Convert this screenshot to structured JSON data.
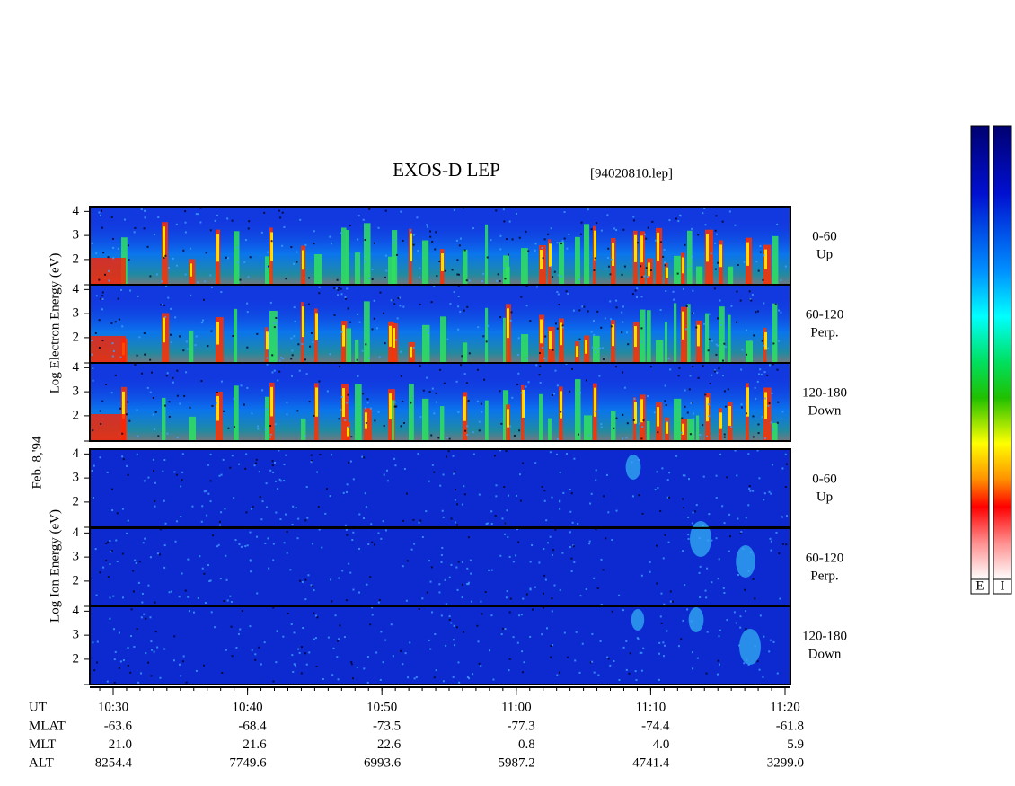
{
  "chart_data": {
    "type": "spectrogram",
    "title": "EXOS-D LEP",
    "subtitle": "[94020810.lep]",
    "date_label": "Feb. 8,'94",
    "ylim": [
      0.95,
      4.2
    ],
    "yticks": [
      2,
      3,
      4
    ],
    "groups": [
      {
        "ylabel": "Log Electron Energy (eV)",
        "panels": [
          {
            "label_top": "0-60",
            "label_bottom": "Up"
          },
          {
            "label_top": "60-120",
            "label_bottom": "Perp."
          },
          {
            "label_top": "120-180",
            "label_bottom": "Down"
          }
        ]
      },
      {
        "ylabel": "Log Ion Energy (eV)",
        "panels": [
          {
            "label_top": "0-60",
            "label_bottom": "Up"
          },
          {
            "label_top": "60-120",
            "label_bottom": "Perp."
          },
          {
            "label_top": "120-180",
            "label_bottom": "Down"
          }
        ]
      }
    ],
    "ut_label": "UT",
    "xticks": [
      "10:30",
      "10:40",
      "10:50",
      "11:00",
      "11:10",
      "11:20"
    ],
    "ephemeris": [
      {
        "name": "MLAT",
        "values": [
          "-63.6",
          "-68.4",
          "-73.5",
          "-77.3",
          "-74.4",
          "-61.8"
        ]
      },
      {
        "name": "MLT",
        "values": [
          "21.0",
          "21.6",
          "22.6",
          "0.8",
          "4.0",
          "5.9"
        ]
      },
      {
        "name": "ALT",
        "values": [
          "8254.4",
          "7749.6",
          "6993.6",
          "5987.2",
          "4741.4",
          "3299.0"
        ]
      }
    ],
    "colorbar_labels": [
      "E",
      "I"
    ]
  }
}
